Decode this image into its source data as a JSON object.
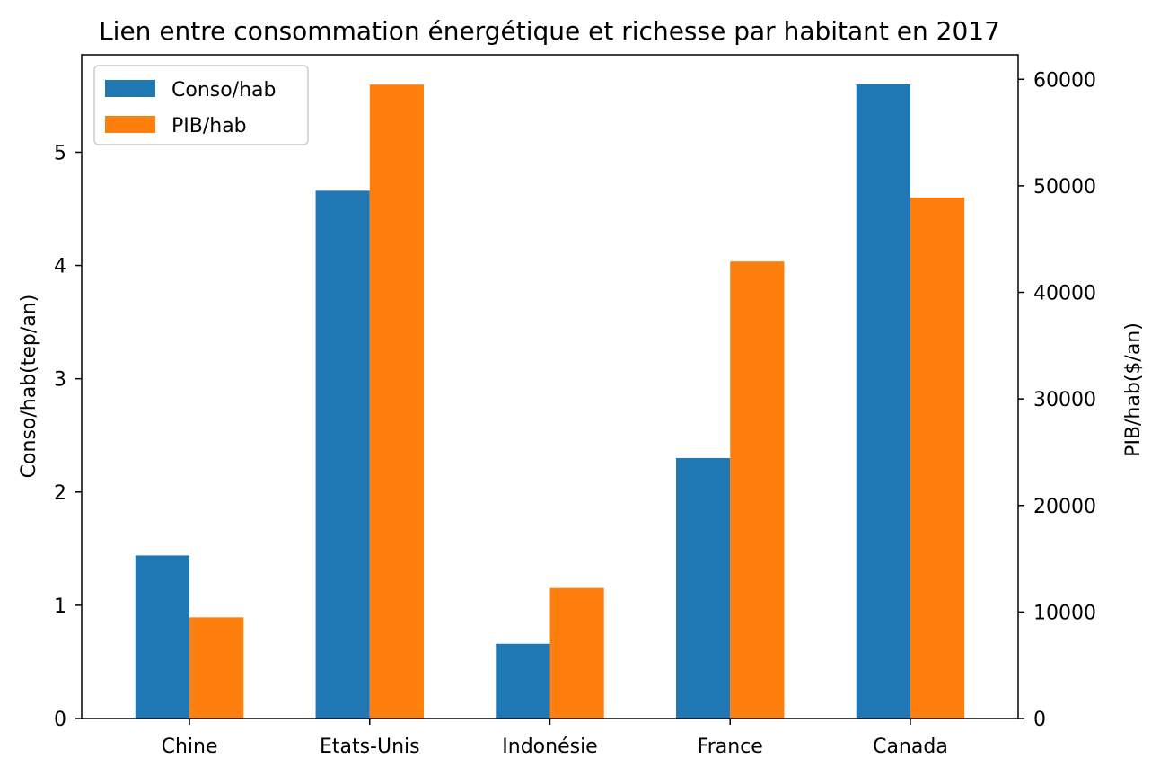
{
  "chart_data": {
    "type": "bar",
    "title": "Lien entre consommation énergétique et richesse par habitant en 2017",
    "xlabel": "",
    "categories": [
      "Chine",
      "Etats-Unis",
      "Indonésie",
      "France",
      "Canada"
    ],
    "series": [
      {
        "name": "Conso/hab",
        "axis": "left",
        "color": "#1f77b4",
        "values": [
          1.44,
          4.66,
          0.66,
          2.3,
          5.6
        ]
      },
      {
        "name": "PIB/hab",
        "axis": "right",
        "color": "#ff7f0e",
        "values": [
          9500,
          59500,
          12250,
          42900,
          48900
        ]
      }
    ],
    "y_left": {
      "label": "Conso/hab(tep/an)",
      "ylim": [
        0,
        5.86
      ],
      "ticks": [
        0,
        1,
        2,
        3,
        4,
        5
      ]
    },
    "y_right": {
      "label": "PIB/hab($/an)",
      "ylim": [
        0,
        62300
      ],
      "ticks": [
        0,
        10000,
        20000,
        30000,
        40000,
        50000,
        60000
      ]
    },
    "legend": {
      "placement": "top-left"
    },
    "grid": false
  }
}
